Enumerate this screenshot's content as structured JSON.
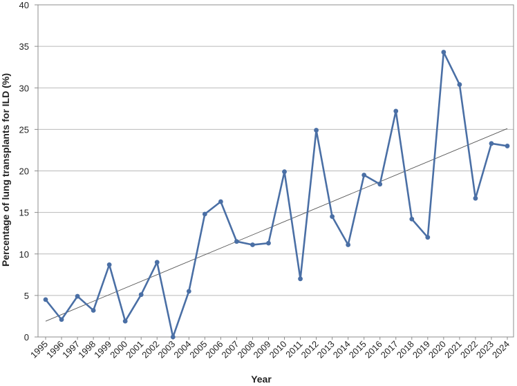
{
  "chart_data": {
    "type": "line",
    "xlabel": "Year",
    "ylabel": "Percentage of lung transplants for ILD (%)",
    "ylim": [
      0,
      40
    ],
    "yticks": [
      "0",
      "5",
      "10",
      "15",
      "20",
      "25",
      "30",
      "35",
      "40"
    ],
    "categories": [
      "1995",
      "1996",
      "1997",
      "1998",
      "1999",
      "2000",
      "2001",
      "2002",
      "2003",
      "2004",
      "2005",
      "2006",
      "2007",
      "2008",
      "2009",
      "2010",
      "2011",
      "2012",
      "2013",
      "2014",
      "2015",
      "2016",
      "2017",
      "2018",
      "2019",
      "2020",
      "2021",
      "2022",
      "2023",
      "2024"
    ],
    "series": [
      {
        "values": [
          4.5,
          2.1,
          4.9,
          3.2,
          8.7,
          1.9,
          5.1,
          9.0,
          0.0,
          5.5,
          14.8,
          16.3,
          11.5,
          11.1,
          11.3,
          19.9,
          7.0,
          24.9,
          14.5,
          11.1,
          19.5,
          18.4,
          27.2,
          14.2,
          12.0,
          34.3,
          30.4,
          16.7,
          23.3,
          23.0
        ],
        "marker": "circle"
      }
    ],
    "trendline": {
      "type": "linear",
      "start": 1.9,
      "end": 25.1
    },
    "grid": "horizontal",
    "legend": "none"
  },
  "colors": {
    "series": "#4a6fa5",
    "trend": "#555555",
    "grid": "#b9b9b9"
  }
}
